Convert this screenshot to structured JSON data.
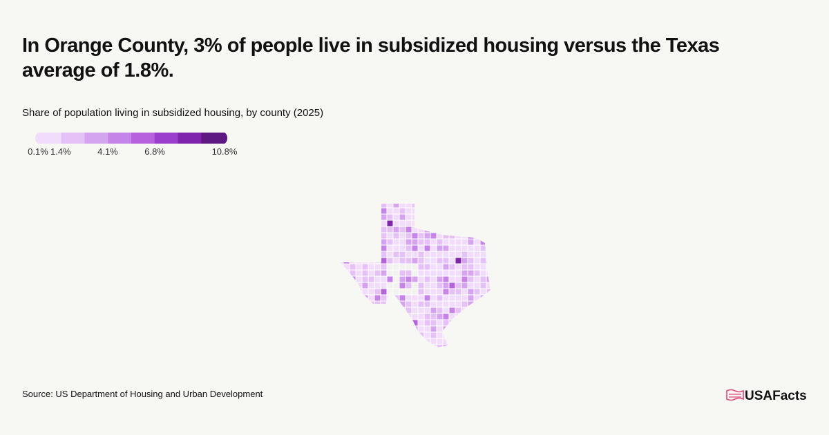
{
  "title": "In Orange County, 3% of people live in subsidized housing versus the Texas average of 1.8%.",
  "subtitle": "Share of population living in subsidized housing, by county (2025)",
  "legend": {
    "range": [
      0.1,
      10.8
    ],
    "colors": [
      "#f1ddfb",
      "#e4c2f7",
      "#d5a4f0",
      "#c585e8",
      "#b463dd",
      "#9b3dcc",
      "#7f25ac",
      "#5e1a82"
    ],
    "ticks": [
      {
        "value": 0.1,
        "label": "0.1%"
      },
      {
        "value": 1.4,
        "label": "1.4%"
      },
      {
        "value": 4.1,
        "label": "4.1%"
      },
      {
        "value": 6.8,
        "label": "6.8%"
      },
      {
        "value": 10.8,
        "label": "10.8%"
      }
    ]
  },
  "source": "Source: US Department of Housing and Urban Development",
  "brand": "USAFacts"
}
